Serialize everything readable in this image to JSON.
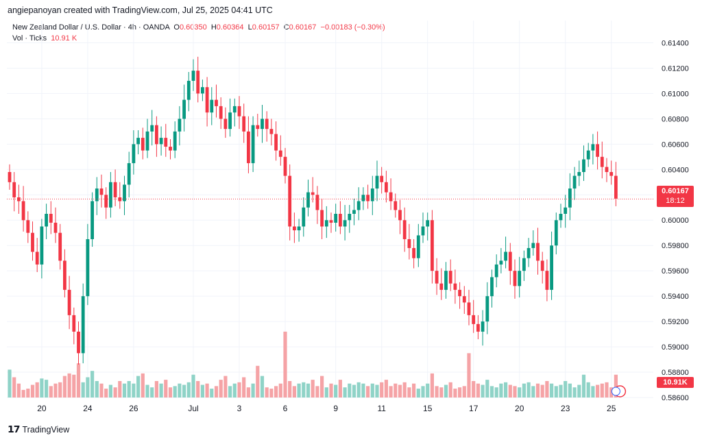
{
  "header": {
    "credit": "angiepanoyan created with TradingView.com, Jul 25, 2025 04:41 UTC"
  },
  "legend": {
    "symbol": "New Zealand Dollar / U.S. Dollar · 4h · OANDA",
    "o_label": "O",
    "o_value": "0.60350",
    "h_label": "H",
    "h_value": "0.60364",
    "l_label": "L",
    "l_value": "0.60157",
    "c_label": "C",
    "c_value": "0.60167",
    "change": "−0.00183 (−0.30%)",
    "vol_label": "Vol · Ticks",
    "vol_value": "10.91 K"
  },
  "price_tag": {
    "price": "0.60167",
    "countdown": "18:12"
  },
  "volume_tag": "10.91K",
  "footer": {
    "brand": "TradingView"
  },
  "colors": {
    "up": "#089981",
    "down": "#f23645",
    "vol_up": "#8fd3c7",
    "vol_down": "#f5a3a6"
  },
  "chart_data": {
    "type": "candlestick",
    "title": "New Zealand Dollar / U.S. Dollar · 4h · OANDA",
    "interval": "4h",
    "ylim": [
      0.586,
      0.615
    ],
    "y_ticks": [
      "0.61400",
      "0.61200",
      "0.61000",
      "0.60800",
      "0.60600",
      "0.60400",
      "0.60200",
      "0.60000",
      "0.59800",
      "0.59600",
      "0.59400",
      "0.59200",
      "0.59000",
      "0.58800",
      "0.58600"
    ],
    "y_tick_values": [
      0.614,
      0.612,
      0.61,
      0.608,
      0.606,
      0.604,
      0.602,
      0.6,
      0.598,
      0.596,
      0.594,
      0.592,
      0.59,
      0.588,
      0.586
    ],
    "x_ticks": [
      {
        "label": "20",
        "index": 7
      },
      {
        "label": "24",
        "index": 17
      },
      {
        "label": "26",
        "index": 27
      },
      {
        "label": "Jul",
        "index": 40
      },
      {
        "label": "3",
        "index": 50
      },
      {
        "label": "6",
        "index": 60
      },
      {
        "label": "9",
        "index": 71
      },
      {
        "label": "11",
        "index": 81
      },
      {
        "label": "15",
        "index": 91
      },
      {
        "label": "17",
        "index": 101
      },
      {
        "label": "20",
        "index": 111
      },
      {
        "label": "23",
        "index": 121
      },
      {
        "label": "25",
        "index": 131
      }
    ],
    "last_price": 0.60167,
    "closes": [
      0.603,
      0.6018,
      0.6015,
      0.6,
      0.599,
      0.5975,
      0.5965,
      0.5995,
      0.6005,
      0.5998,
      0.599,
      0.5968,
      0.5945,
      0.5925,
      0.5912,
      0.5895,
      0.594,
      0.5985,
      0.6015,
      0.6025,
      0.602,
      0.601,
      0.603,
      0.6018,
      0.6015,
      0.6028,
      0.6045,
      0.606,
      0.6065,
      0.6055,
      0.607,
      0.6075,
      0.606,
      0.6065,
      0.6058,
      0.6055,
      0.607,
      0.608,
      0.6095,
      0.611,
      0.6118,
      0.61,
      0.6105,
      0.6085,
      0.6095,
      0.609,
      0.608,
      0.6072,
      0.6085,
      0.609,
      0.6082,
      0.607,
      0.6045,
      0.6075,
      0.6072,
      0.608,
      0.6072,
      0.6068,
      0.6055,
      0.605,
      0.6035,
      0.5995,
      0.5992,
      0.5995,
      0.601,
      0.6022,
      0.602,
      0.6008,
      0.5995,
      0.6,
      0.5998,
      0.6005,
      0.5995,
      0.6,
      0.6005,
      0.6008,
      0.6015,
      0.602,
      0.6015,
      0.6025,
      0.6035,
      0.603,
      0.6022,
      0.6015,
      0.6008,
      0.6,
      0.5985,
      0.5978,
      0.597,
      0.5988,
      0.5995,
      0.6,
      0.596,
      0.595,
      0.5945,
      0.596,
      0.595,
      0.5945,
      0.594,
      0.5935,
      0.5925,
      0.5918,
      0.5912,
      0.592,
      0.594,
      0.5955,
      0.5965,
      0.5968,
      0.5975,
      0.596,
      0.5948,
      0.596,
      0.597,
      0.5978,
      0.5982,
      0.5968,
      0.596,
      0.5945,
      0.598,
      0.6,
      0.6005,
      0.601,
      0.6025,
      0.6035,
      0.6038,
      0.6048,
      0.6055,
      0.606,
      0.605,
      0.6042,
      0.6038,
      0.6035,
      0.6017
    ],
    "volume_tick_values": [
      0.5882,
      0.5876,
      0.5871,
      0.5866,
      0.5867,
      0.587,
      0.5872,
      0.5875,
      0.5874,
      0.5869,
      0.5871,
      0.5872,
      0.5877,
      0.5879,
      0.5878,
      0.5887,
      0.5872,
      0.5876,
      0.5881,
      0.5873,
      0.5871,
      0.5867,
      0.587,
      0.5868,
      0.5873,
      0.5871,
      0.5873,
      0.5871,
      0.5877,
      0.5879,
      0.587,
      0.5868,
      0.5873,
      0.5871,
      0.5874,
      0.5868,
      0.5869,
      0.5871,
      0.587,
      0.5872,
      0.5878,
      0.5873,
      0.587,
      0.5871,
      0.5867,
      0.5869,
      0.5874,
      0.5877,
      0.5869,
      0.5871,
      0.5872,
      0.5876,
      0.5868,
      0.5871,
      0.5885,
      0.5877,
      0.5868,
      0.5867,
      0.5869,
      0.5871,
      0.5912,
      0.5873,
      0.5869,
      0.5871,
      0.5872,
      0.5871,
      0.5874,
      0.5869,
      0.5877,
      0.5868,
      0.5871,
      0.587,
      0.5874,
      0.5868,
      0.5871,
      0.587,
      0.5872,
      0.5871,
      0.5869,
      0.5871,
      0.587,
      0.5872,
      0.5874,
      0.5869,
      0.5871,
      0.587,
      0.5872,
      0.5868,
      0.5871,
      0.5867,
      0.5869,
      0.5871,
      0.5879,
      0.5869,
      0.5868,
      0.587,
      0.5872,
      0.5867,
      0.5868,
      0.5869,
      0.5895,
      0.5873,
      0.5871,
      0.587,
      0.5874,
      0.5869,
      0.5868,
      0.5871,
      0.5872,
      0.587,
      0.5869,
      0.5868,
      0.5871,
      0.5872,
      0.5869,
      0.5871,
      0.587,
      0.5873,
      0.5871,
      0.5869,
      0.587,
      0.5873,
      0.5871,
      0.5868,
      0.587,
      0.5878,
      0.5872,
      0.5869,
      0.587,
      0.5871,
      0.5872,
      0.5868,
      0.5878
    ]
  }
}
